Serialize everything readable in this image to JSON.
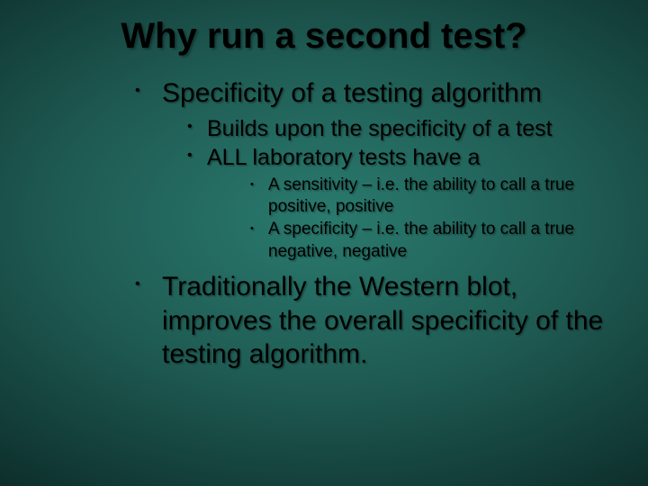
{
  "slide": {
    "background": {
      "type": "radial-gradient",
      "center_color": "#2a7a6e",
      "mid_color": "#1e5a52",
      "outer_color": "#0d2d2a",
      "edge_color": "#000000"
    },
    "font_family": "Comic Sans MS",
    "text_color": "#000000",
    "text_shadow": "2px 2px rgba(0,0,0,0.3)",
    "title": {
      "text": "Why run a second test?",
      "fontsize_pt": 40,
      "weight": "bold",
      "align": "center"
    },
    "bullets": [
      {
        "level": 1,
        "text": "Specificity of a testing algorithm",
        "fontsize_pt": 30,
        "children": [
          {
            "level": 2,
            "text": "Builds upon the specificity of a test",
            "fontsize_pt": 25
          },
          {
            "level": 2,
            "text": "ALL laboratory tests have a",
            "fontsize_pt": 25,
            "children": [
              {
                "level": 3,
                "text": "A sensitivity – i.e. the ability to call a true positive, positive",
                "fontsize_pt": 19
              },
              {
                "level": 3,
                "text": "A specificity – i.e. the ability to call a true negative, negative",
                "fontsize_pt": 19
              }
            ]
          }
        ]
      },
      {
        "level": 1,
        "text": "Traditionally the Western blot, improves the overall specificity of the testing algorithm.",
        "fontsize_pt": 30
      }
    ]
  }
}
